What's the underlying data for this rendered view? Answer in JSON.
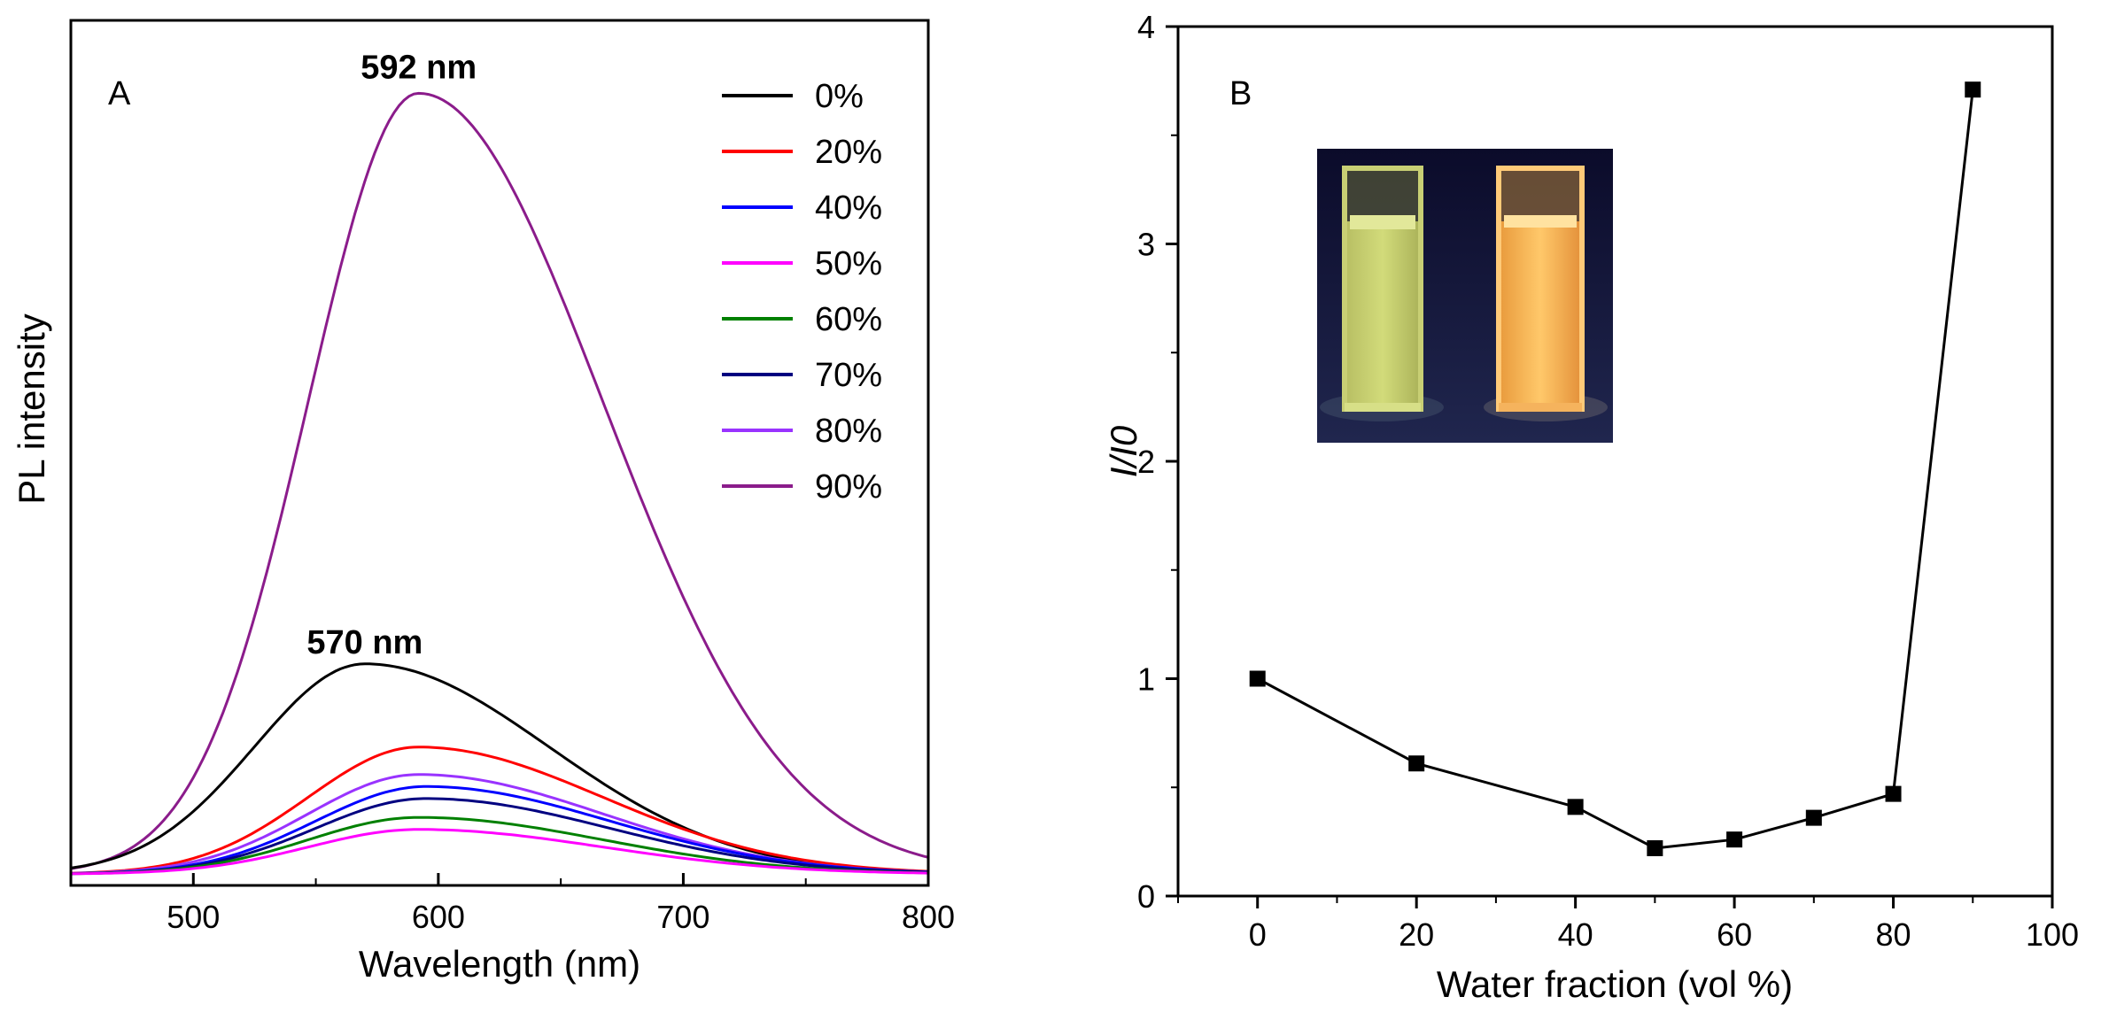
{
  "chart_data": [
    {
      "panel": "A",
      "type": "line",
      "title": "",
      "xlabel": "Wavelength (nm)",
      "ylabel": "PL intensity",
      "xlim": [
        450,
        800
      ],
      "ylim": [
        0,
        100
      ],
      "xticks": [
        500,
        600,
        700,
        800
      ],
      "yticks": [],
      "legend_position": "top-right",
      "peak_annotations": [
        {
          "text": "592 nm",
          "x": 592,
          "y": 92
        },
        {
          "text": "570 nm",
          "x": 570,
          "y": 25
        }
      ],
      "series": [
        {
          "name": "0%",
          "color": "#000000",
          "peak": 570,
          "amplitude": 24.5
        },
        {
          "name": "20%",
          "color": "#ff0000",
          "peak": 592,
          "amplitude": 14.8
        },
        {
          "name": "40%",
          "color": "#0000ff",
          "peak": 595,
          "amplitude": 10.2
        },
        {
          "name": "50%",
          "color": "#ff00ff",
          "peak": 592,
          "amplitude": 5.2
        },
        {
          "name": "60%",
          "color": "#008000",
          "peak": 592,
          "amplitude": 6.6
        },
        {
          "name": "70%",
          "color": "#000080",
          "peak": 595,
          "amplitude": 8.8
        },
        {
          "name": "80%",
          "color": "#9933ff",
          "peak": 592,
          "amplitude": 11.6
        },
        {
          "name": "90%",
          "color": "#8b1c8b",
          "peak": 592,
          "amplitude": 91.0
        }
      ]
    },
    {
      "panel": "B",
      "type": "line",
      "title": "",
      "xlabel": "Water fraction (vol %)",
      "ylabel": "I/I0",
      "xlim": [
        -10,
        100
      ],
      "ylim": [
        0,
        4
      ],
      "xticks": [
        0,
        20,
        40,
        60,
        80,
        100
      ],
      "yticks": [
        0,
        1,
        2,
        3,
        4
      ],
      "marker": "square",
      "inset": "photo of two cuvettes under UV light: left yellow-green, right bright orange",
      "series": [
        {
          "name": "I/I0",
          "color": "#000000",
          "x": [
            0,
            20,
            40,
            50,
            60,
            70,
            80,
            90
          ],
          "y": [
            1.0,
            0.61,
            0.41,
            0.22,
            0.26,
            0.36,
            0.47,
            3.71
          ]
        }
      ]
    }
  ]
}
